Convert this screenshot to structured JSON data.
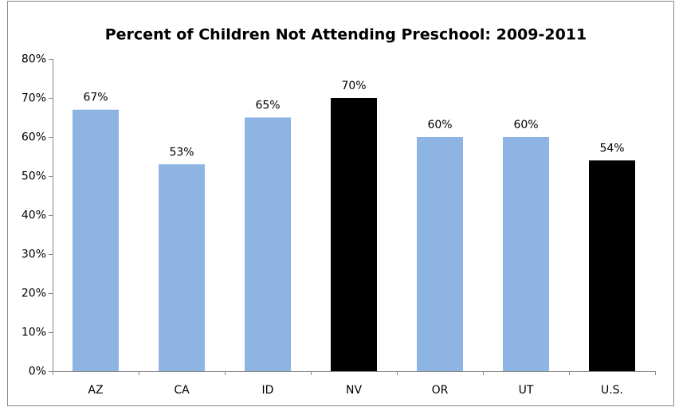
{
  "chart_data": {
    "type": "bar",
    "title": "Percent of Children Not Attending Preschool: 2009-2011",
    "categories": [
      "AZ",
      "CA",
      "ID",
      "NV",
      "OR",
      "UT",
      "U.S."
    ],
    "values": [
      67,
      53,
      65,
      70,
      60,
      60,
      54
    ],
    "value_labels": [
      "67%",
      "53%",
      "65%",
      "70%",
      "60%",
      "60%",
      "54%"
    ],
    "colors": [
      "#8eb4e3",
      "#8eb4e3",
      "#8eb4e3",
      "#000000",
      "#8eb4e3",
      "#8eb4e3",
      "#000000"
    ],
    "ylim": [
      0,
      80
    ],
    "yticks": [
      {
        "value": 0,
        "label": "0%"
      },
      {
        "value": 10,
        "label": "10%"
      },
      {
        "value": 20,
        "label": "20%"
      },
      {
        "value": 30,
        "label": "30%"
      },
      {
        "value": 40,
        "label": "40%"
      },
      {
        "value": 50,
        "label": "50%"
      },
      {
        "value": 60,
        "label": "60%"
      },
      {
        "value": 70,
        "label": "70%"
      },
      {
        "value": 80,
        "label": "80%"
      }
    ],
    "grid": false
  }
}
